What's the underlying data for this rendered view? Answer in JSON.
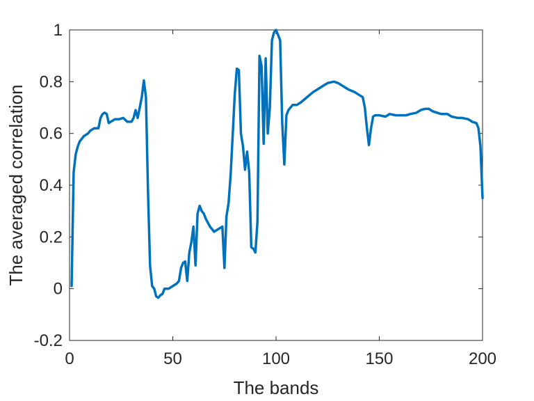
{
  "chart_data": {
    "type": "line",
    "title": "",
    "xlabel": "The bands",
    "ylabel": "The averaged correlation",
    "xlim": [
      0,
      200
    ],
    "ylim": [
      -0.2,
      1
    ],
    "xticks": [
      0,
      50,
      100,
      150,
      200
    ],
    "xtick_labels": [
      "0",
      "50",
      "100",
      "150",
      "200"
    ],
    "yticks": [
      -0.2,
      0,
      0.2,
      0.4,
      0.6,
      0.8,
      1
    ],
    "ytick_labels": [
      "-0.2",
      "0",
      "0.2",
      "0.4",
      "0.6",
      "0.8",
      "1"
    ],
    "grid": false,
    "legend": "none",
    "series": [
      {
        "color": "#0072BD",
        "x": [
          1,
          2,
          3,
          4,
          5,
          6,
          7,
          8,
          9,
          10,
          12,
          14,
          15,
          16,
          17,
          18,
          19,
          20,
          22,
          24,
          26,
          28,
          30,
          31,
          32,
          33,
          34,
          35,
          36,
          37,
          38,
          39,
          40,
          41,
          42,
          43,
          44,
          45,
          46,
          48,
          50,
          52,
          53,
          54,
          55,
          56,
          57,
          58,
          59,
          60,
          61,
          62,
          63,
          64,
          65,
          66,
          68,
          70,
          72,
          74,
          75,
          76,
          77,
          78,
          79,
          80,
          81,
          82,
          83,
          84,
          85,
          86,
          87,
          88,
          89,
          90,
          91,
          92,
          93,
          94,
          95,
          96,
          97,
          98,
          99,
          100,
          101,
          102,
          103,
          104,
          105,
          106,
          108,
          110,
          112,
          115,
          118,
          120,
          123,
          125,
          128,
          130,
          132,
          135,
          138,
          141,
          142,
          143,
          144,
          145,
          146,
          147,
          148,
          150,
          153,
          155,
          158,
          160,
          163,
          165,
          168,
          170,
          172,
          174,
          176,
          178,
          180,
          183,
          185,
          188,
          190,
          193,
          195,
          197,
          198,
          199,
          200
        ],
        "values": [
          0.01,
          0.45,
          0.52,
          0.55,
          0.57,
          0.58,
          0.59,
          0.595,
          0.6,
          0.61,
          0.62,
          0.62,
          0.66,
          0.675,
          0.68,
          0.675,
          0.64,
          0.645,
          0.655,
          0.655,
          0.66,
          0.645,
          0.645,
          0.66,
          0.69,
          0.66,
          0.7,
          0.74,
          0.805,
          0.74,
          0.37,
          0.09,
          0.01,
          0.0,
          -0.03,
          -0.035,
          -0.025,
          -0.02,
          0.0,
          0.0,
          0.01,
          0.02,
          0.03,
          0.08,
          0.1,
          0.105,
          0.03,
          0.14,
          0.18,
          0.24,
          0.09,
          0.29,
          0.32,
          0.3,
          0.29,
          0.27,
          0.24,
          0.22,
          0.23,
          0.24,
          0.08,
          0.28,
          0.33,
          0.44,
          0.59,
          0.75,
          0.85,
          0.845,
          0.6,
          0.55,
          0.46,
          0.53,
          0.45,
          0.16,
          0.155,
          0.14,
          0.26,
          0.9,
          0.86,
          0.56,
          0.89,
          0.6,
          0.7,
          0.96,
          0.99,
          1.0,
          0.98,
          0.96,
          0.64,
          0.48,
          0.67,
          0.69,
          0.71,
          0.71,
          0.72,
          0.74,
          0.76,
          0.77,
          0.785,
          0.795,
          0.8,
          0.795,
          0.785,
          0.77,
          0.76,
          0.745,
          0.74,
          0.7,
          0.62,
          0.555,
          0.62,
          0.665,
          0.67,
          0.67,
          0.665,
          0.675,
          0.67,
          0.67,
          0.67,
          0.675,
          0.68,
          0.69,
          0.695,
          0.695,
          0.685,
          0.68,
          0.675,
          0.675,
          0.665,
          0.66,
          0.66,
          0.655,
          0.645,
          0.64,
          0.62,
          0.55,
          0.35
        ]
      }
    ]
  }
}
